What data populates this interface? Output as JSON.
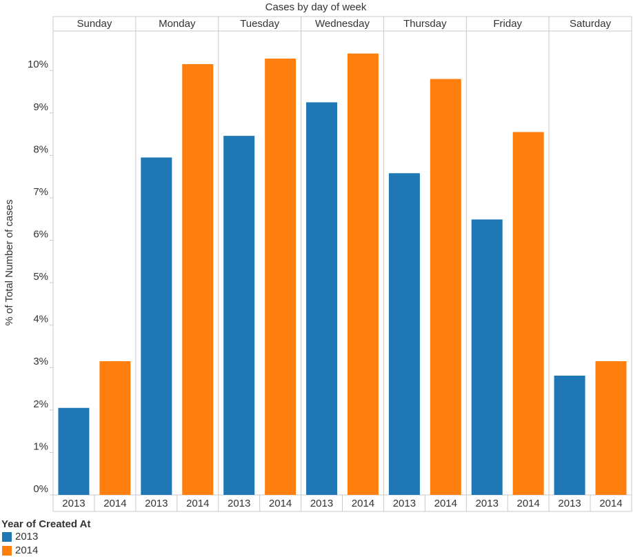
{
  "chart_data": {
    "type": "bar",
    "title": "Cases by day of week",
    "y_label": "% of Total Number of cases",
    "legend_title": "Year of Created At",
    "categories": [
      "Sunday",
      "Monday",
      "Tuesday",
      "Wednesday",
      "Thursday",
      "Friday",
      "Saturday"
    ],
    "series": [
      {
        "name": "2013",
        "color": "#1f77b4",
        "values": [
          2.05,
          7.95,
          8.46,
          9.25,
          7.58,
          6.49,
          2.81
        ]
      },
      {
        "name": "2014",
        "color": "#ff7f0e",
        "values": [
          3.15,
          10.15,
          10.28,
          10.4,
          9.8,
          8.55,
          3.15
        ]
      }
    ],
    "ylim": [
      0,
      10.93
    ],
    "yticks": [
      {
        "value": 0,
        "label": "0%"
      },
      {
        "value": 1,
        "label": "1%"
      },
      {
        "value": 2,
        "label": "2%"
      },
      {
        "value": 3,
        "label": "3%"
      },
      {
        "value": 4,
        "label": "4%"
      },
      {
        "value": 5,
        "label": "5%"
      },
      {
        "value": 6,
        "label": "6%"
      },
      {
        "value": 7,
        "label": "7%"
      },
      {
        "value": 8,
        "label": "8%"
      },
      {
        "value": 9,
        "label": "9%"
      },
      {
        "value": 10,
        "label": "10%"
      }
    ]
  }
}
